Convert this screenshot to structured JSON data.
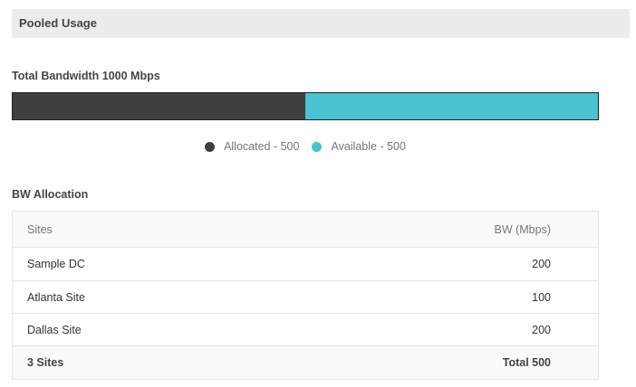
{
  "section": {
    "title": "Pooled Usage"
  },
  "bandwidth": {
    "title": "Total Bandwidth 1000 Mbps",
    "total": 1000,
    "segments": [
      {
        "key": "allocated",
        "value": 500,
        "color": "#3f3f3f"
      },
      {
        "key": "available",
        "value": 500,
        "color": "#48c3cf"
      }
    ],
    "legend": {
      "allocated": "Allocated - 500",
      "available": "Available - 500"
    }
  },
  "allocation": {
    "title": "BW Allocation",
    "columns": {
      "sites": "Sites",
      "bw": "BW (Mbps)"
    },
    "rows": [
      {
        "site": "Sample DC",
        "bw": "200"
      },
      {
        "site": "Atlanta Site",
        "bw": "100"
      },
      {
        "site": "Dallas Site",
        "bw": "200"
      }
    ],
    "footer": {
      "sites": "3 Sites",
      "total": "Total 500"
    }
  }
}
